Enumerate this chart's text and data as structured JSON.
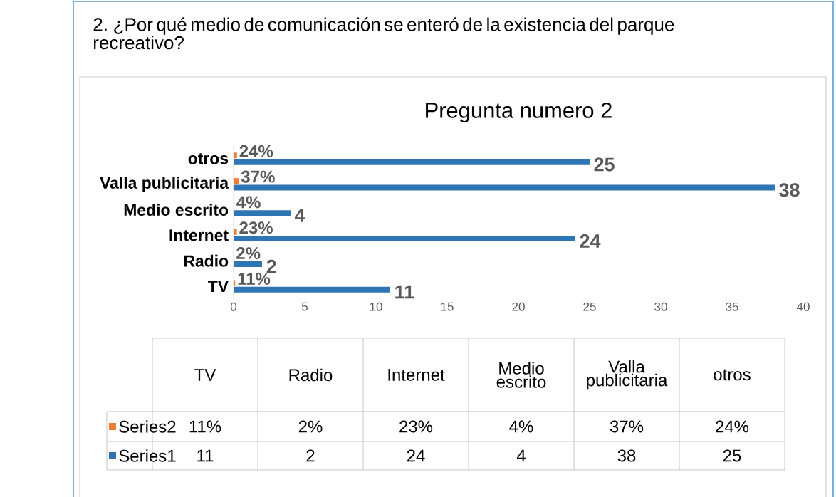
{
  "chart_data": {
    "type": "bar",
    "orientation": "horizontal",
    "title": "Pregunta numero 2",
    "annotations": [
      "2. ¿Por qué medio de comunicación se enteró de la existencia del parque recreativo?"
    ],
    "categories": [
      "otros",
      "Valla publicitaria",
      "Medio escrito",
      "Internet",
      "Radio",
      "TV"
    ],
    "series": [
      {
        "name": "Series1",
        "color": "#2e75b6",
        "values": [
          25,
          38,
          4,
          24,
          2,
          11
        ],
        "value_labels": [
          "25",
          "38",
          "4",
          "24",
          "2",
          "11"
        ]
      },
      {
        "name": "Series2",
        "color": "#ed7d31",
        "values": [
          0.24,
          0.37,
          0.04,
          0.23,
          0.02,
          0.11
        ],
        "value_labels": [
          "24%",
          "37%",
          "4%",
          "23%",
          "2%",
          "11%"
        ]
      }
    ],
    "xlim": [
      0,
      40
    ],
    "xticks": [
      0,
      5,
      10,
      15,
      20,
      25,
      30,
      35,
      40
    ],
    "legend": "bottom"
  }
}
